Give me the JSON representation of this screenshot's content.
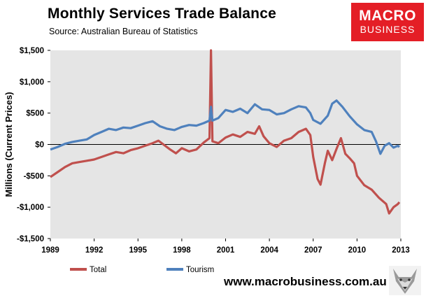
{
  "header": {
    "title": "Monthly Services Trade Balance",
    "subtitle": "Source: Australian Bureau of Statistics"
  },
  "logo": {
    "line1": "MACRO",
    "line2": "BUSINESS"
  },
  "footer": {
    "site": "www.macrobusiness.com.au",
    "mascot_icon": "wolf-icon"
  },
  "colors": {
    "total": "#c0504d",
    "tourism": "#4f81bd",
    "plot_bg": "#e5e5e5",
    "brand": "#e41e26"
  },
  "chart_data": {
    "type": "line",
    "title": "Monthly Services Trade Balance",
    "ylabel": "Millions (Current Prices)",
    "xlabel": "",
    "xlim": [
      1989,
      2013
    ],
    "ylim": [
      -1500,
      1500
    ],
    "x_ticks": [
      "1989",
      "1992",
      "1995",
      "1998",
      "2001",
      "2004",
      "2007",
      "2010",
      "2013"
    ],
    "y_ticks": [
      "$1,500",
      "$1,000",
      "$500",
      "$0",
      "-$500",
      "-$1,000",
      "-$1,500"
    ],
    "y_tick_values": [
      1500,
      1000,
      500,
      0,
      -500,
      -1000,
      -1500
    ],
    "x_tick_values": [
      1989,
      1992,
      1995,
      1998,
      2001,
      2004,
      2007,
      2010,
      2013
    ],
    "grid": false,
    "legend": "bottom",
    "series": [
      {
        "name": "Total",
        "color": "#c0504d",
        "points": [
          [
            1989.0,
            -520
          ],
          [
            1989.5,
            -440
          ],
          [
            1990.0,
            -360
          ],
          [
            1990.5,
            -300
          ],
          [
            1991.0,
            -280
          ],
          [
            1991.5,
            -260
          ],
          [
            1992.0,
            -240
          ],
          [
            1992.5,
            -200
          ],
          [
            1993.0,
            -160
          ],
          [
            1993.5,
            -120
          ],
          [
            1994.0,
            -140
          ],
          [
            1994.5,
            -90
          ],
          [
            1995.0,
            -60
          ],
          [
            1995.5,
            -20
          ],
          [
            1996.0,
            20
          ],
          [
            1996.4,
            60
          ],
          [
            1996.8,
            -10
          ],
          [
            1997.2,
            -80
          ],
          [
            1997.6,
            -140
          ],
          [
            1998.0,
            -60
          ],
          [
            1998.5,
            -110
          ],
          [
            1999.0,
            -80
          ],
          [
            1999.5,
            30
          ],
          [
            1999.9,
            100
          ],
          [
            2000.0,
            1500
          ],
          [
            2000.1,
            50
          ],
          [
            2000.5,
            20
          ],
          [
            2001.0,
            110
          ],
          [
            2001.5,
            160
          ],
          [
            2002.0,
            120
          ],
          [
            2002.5,
            200
          ],
          [
            2003.0,
            170
          ],
          [
            2003.3,
            290
          ],
          [
            2003.6,
            130
          ],
          [
            2004.0,
            20
          ],
          [
            2004.5,
            -40
          ],
          [
            2005.0,
            60
          ],
          [
            2005.5,
            100
          ],
          [
            2006.0,
            200
          ],
          [
            2006.5,
            250
          ],
          [
            2006.8,
            150
          ],
          [
            2007.0,
            -200
          ],
          [
            2007.3,
            -550
          ],
          [
            2007.5,
            -640
          ],
          [
            2007.8,
            -300
          ],
          [
            2008.0,
            -100
          ],
          [
            2008.3,
            -250
          ],
          [
            2008.6,
            -70
          ],
          [
            2008.9,
            100
          ],
          [
            2009.2,
            -150
          ],
          [
            2009.5,
            -220
          ],
          [
            2009.8,
            -300
          ],
          [
            2010.0,
            -500
          ],
          [
            2010.5,
            -650
          ],
          [
            2011.0,
            -720
          ],
          [
            2011.5,
            -850
          ],
          [
            2012.0,
            -950
          ],
          [
            2012.2,
            -1100
          ],
          [
            2012.5,
            -1000
          ],
          [
            2012.8,
            -950
          ],
          [
            2012.9,
            -920
          ]
        ]
      },
      {
        "name": "Tourism",
        "color": "#4f81bd",
        "points": [
          [
            1989.0,
            -80
          ],
          [
            1989.5,
            -40
          ],
          [
            1990.0,
            10
          ],
          [
            1990.5,
            40
          ],
          [
            1991.0,
            60
          ],
          [
            1991.5,
            80
          ],
          [
            1992.0,
            150
          ],
          [
            1992.5,
            200
          ],
          [
            1993.0,
            250
          ],
          [
            1993.5,
            230
          ],
          [
            1994.0,
            270
          ],
          [
            1994.5,
            260
          ],
          [
            1995.0,
            300
          ],
          [
            1995.5,
            340
          ],
          [
            1996.0,
            370
          ],
          [
            1996.5,
            290
          ],
          [
            1997.0,
            250
          ],
          [
            1997.5,
            230
          ],
          [
            1998.0,
            280
          ],
          [
            1998.5,
            310
          ],
          [
            1999.0,
            300
          ],
          [
            1999.5,
            340
          ],
          [
            1999.9,
            380
          ],
          [
            2000.0,
            600
          ],
          [
            2000.1,
            380
          ],
          [
            2000.5,
            420
          ],
          [
            2001.0,
            550
          ],
          [
            2001.5,
            520
          ],
          [
            2002.0,
            570
          ],
          [
            2002.5,
            500
          ],
          [
            2003.0,
            640
          ],
          [
            2003.5,
            560
          ],
          [
            2004.0,
            550
          ],
          [
            2004.5,
            480
          ],
          [
            2005.0,
            500
          ],
          [
            2005.5,
            560
          ],
          [
            2006.0,
            610
          ],
          [
            2006.5,
            590
          ],
          [
            2006.8,
            500
          ],
          [
            2007.0,
            390
          ],
          [
            2007.5,
            330
          ],
          [
            2008.0,
            460
          ],
          [
            2008.3,
            650
          ],
          [
            2008.6,
            700
          ],
          [
            2009.0,
            600
          ],
          [
            2009.5,
            450
          ],
          [
            2010.0,
            320
          ],
          [
            2010.5,
            230
          ],
          [
            2011.0,
            200
          ],
          [
            2011.3,
            50
          ],
          [
            2011.6,
            -150
          ],
          [
            2011.9,
            -20
          ],
          [
            2012.2,
            20
          ],
          [
            2012.5,
            -50
          ],
          [
            2012.8,
            -20
          ],
          [
            2012.9,
            -40
          ]
        ]
      }
    ]
  }
}
